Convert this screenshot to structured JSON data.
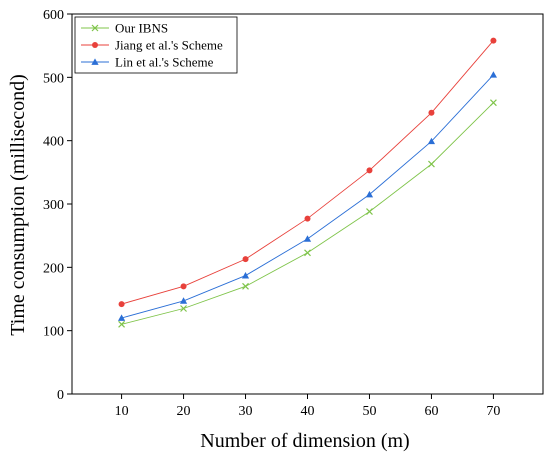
{
  "chart_data": {
    "type": "line",
    "title": "",
    "xlabel": "Number of dimension (m)",
    "ylabel": "Time consumption (millisecond)",
    "x": [
      10,
      20,
      30,
      40,
      50,
      60,
      70
    ],
    "xlim": [
      2,
      78
    ],
    "ylim": [
      0,
      600
    ],
    "x_ticks": [
      "10",
      "20",
      "30",
      "40",
      "50",
      "60",
      "70"
    ],
    "y_ticks": [
      "0",
      "100",
      "200",
      "300",
      "400",
      "500",
      "600"
    ],
    "grid": false,
    "legend_position": "top-left",
    "series": [
      {
        "name": "Our IBNS",
        "color": "#7fc44a",
        "marker": "x-icon",
        "values": [
          110,
          135,
          170,
          223,
          288,
          363,
          460
        ]
      },
      {
        "name": "Jiang et al.'s Scheme",
        "color": "#e8413b",
        "marker": "circle-icon",
        "values": [
          142,
          170,
          213,
          277,
          353,
          444,
          558
        ]
      },
      {
        "name": "Lin et al.'s Scheme",
        "color": "#2b6fd6",
        "marker": "triangle-icon",
        "values": [
          120,
          147,
          187,
          245,
          315,
          399,
          504
        ]
      }
    ]
  }
}
